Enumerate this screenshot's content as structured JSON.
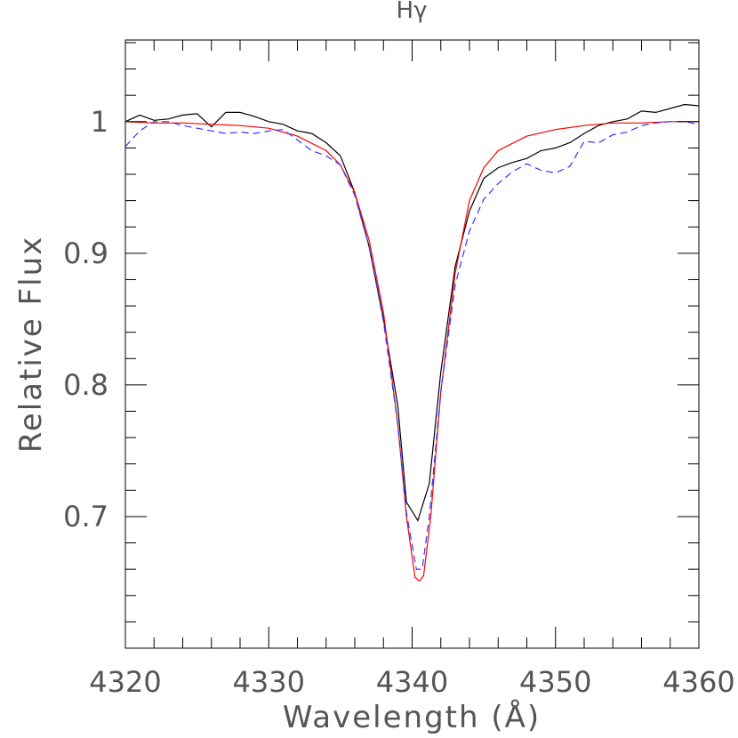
{
  "chart_data": {
    "type": "line",
    "title": "Hγ",
    "xlabel": "Wavelength (Å)",
    "ylabel": "Relative Flux",
    "xlim": [
      4320,
      4360
    ],
    "ylim": [
      0.6,
      1.062
    ],
    "x_ticks": [
      4320,
      4330,
      4340,
      4350,
      4360
    ],
    "x_tick_labels": [
      "4320",
      "4330",
      "4340",
      "4350",
      "4360"
    ],
    "y_ticks": [
      0.7,
      0.8,
      0.9,
      1.0
    ],
    "y_tick_labels": [
      "0.7",
      "0.8",
      "0.9",
      "1"
    ],
    "grid": false,
    "series": [
      {
        "color": "#000000",
        "style": "solid",
        "points": [
          [
            4320,
            1.0
          ],
          [
            4321,
            1.005
          ],
          [
            4322,
            1.001
          ],
          [
            4323,
            1.002
          ],
          [
            4324,
            1.005
          ],
          [
            4325,
            1.006
          ],
          [
            4326,
            0.996
          ],
          [
            4327,
            1.007
          ],
          [
            4328,
            1.007
          ],
          [
            4329,
            1.004
          ],
          [
            4330,
            1.0
          ],
          [
            4331,
            0.998
          ],
          [
            4332,
            0.993
          ],
          [
            4333,
            0.991
          ],
          [
            4334,
            0.984
          ],
          [
            4335,
            0.974
          ],
          [
            4336,
            0.946
          ],
          [
            4337,
            0.905
          ],
          [
            4338,
            0.85
          ],
          [
            4339,
            0.784
          ],
          [
            4339.6,
            0.711
          ],
          [
            4340.4,
            0.697
          ],
          [
            4341.2,
            0.725
          ],
          [
            4342,
            0.81
          ],
          [
            4343,
            0.89
          ],
          [
            4344,
            0.932
          ],
          [
            4345,
            0.957
          ],
          [
            4346,
            0.965
          ],
          [
            4347,
            0.969
          ],
          [
            4348,
            0.972
          ],
          [
            4349,
            0.978
          ],
          [
            4350,
            0.98
          ],
          [
            4351,
            0.984
          ],
          [
            4352,
            0.991
          ],
          [
            4353,
            0.997
          ],
          [
            4354,
            1.0
          ],
          [
            4355,
            1.002
          ],
          [
            4356,
            1.008
          ],
          [
            4357,
            1.007
          ],
          [
            4358,
            1.01
          ],
          [
            4359,
            1.013
          ],
          [
            4360,
            1.012
          ]
        ]
      },
      {
        "color": "#ff0000",
        "style": "solid",
        "points": [
          [
            4320,
            1.0
          ],
          [
            4322,
            0.999
          ],
          [
            4324,
            0.999
          ],
          [
            4326,
            0.998
          ],
          [
            4328,
            0.997
          ],
          [
            4330,
            0.995
          ],
          [
            4332,
            0.989
          ],
          [
            4334,
            0.978
          ],
          [
            4335,
            0.967
          ],
          [
            4336,
            0.946
          ],
          [
            4337,
            0.91
          ],
          [
            4338,
            0.855
          ],
          [
            4339,
            0.77
          ],
          [
            4339.6,
            0.7
          ],
          [
            4340.2,
            0.654
          ],
          [
            4340.5,
            0.651
          ],
          [
            4340.8,
            0.655
          ],
          [
            4341.3,
            0.7
          ],
          [
            4342,
            0.795
          ],
          [
            4343,
            0.885
          ],
          [
            4344,
            0.94
          ],
          [
            4345,
            0.965
          ],
          [
            4346,
            0.978
          ],
          [
            4348,
            0.989
          ],
          [
            4350,
            0.994
          ],
          [
            4352,
            0.997
          ],
          [
            4354,
            0.999
          ],
          [
            4356,
            0.999
          ],
          [
            4358,
            1.0
          ],
          [
            4360,
            1.0
          ]
        ]
      },
      {
        "color": "#3333ff",
        "style": "dashed",
        "points": [
          [
            4320,
            0.981
          ],
          [
            4321,
            0.993
          ],
          [
            4322,
            1.0
          ],
          [
            4323,
            1.0
          ],
          [
            4324,
            0.997
          ],
          [
            4325,
            0.995
          ],
          [
            4326,
            0.993
          ],
          [
            4327,
            0.991
          ],
          [
            4328,
            0.992
          ],
          [
            4329,
            0.991
          ],
          [
            4330,
            0.993
          ],
          [
            4331,
            0.994
          ],
          [
            4332,
            0.986
          ],
          [
            4333,
            0.978
          ],
          [
            4334,
            0.974
          ],
          [
            4335,
            0.967
          ],
          [
            4336,
            0.944
          ],
          [
            4337,
            0.905
          ],
          [
            4338,
            0.848
          ],
          [
            4339,
            0.77
          ],
          [
            4339.6,
            0.703
          ],
          [
            4340.3,
            0.66
          ],
          [
            4340.7,
            0.66
          ],
          [
            4341.2,
            0.7
          ],
          [
            4342,
            0.795
          ],
          [
            4343,
            0.876
          ],
          [
            4344,
            0.917
          ],
          [
            4345,
            0.941
          ],
          [
            4346,
            0.953
          ],
          [
            4347,
            0.962
          ],
          [
            4348,
            0.968
          ],
          [
            4349,
            0.963
          ],
          [
            4350,
            0.961
          ],
          [
            4351,
            0.966
          ],
          [
            4352,
            0.985
          ],
          [
            4353,
            0.984
          ],
          [
            4354,
            0.99
          ],
          [
            4355,
            0.992
          ],
          [
            4356,
            0.997
          ],
          [
            4357,
            0.999
          ],
          [
            4358,
            1.0
          ],
          [
            4359,
            1.0
          ],
          [
            4360,
            0.998
          ]
        ]
      }
    ]
  }
}
